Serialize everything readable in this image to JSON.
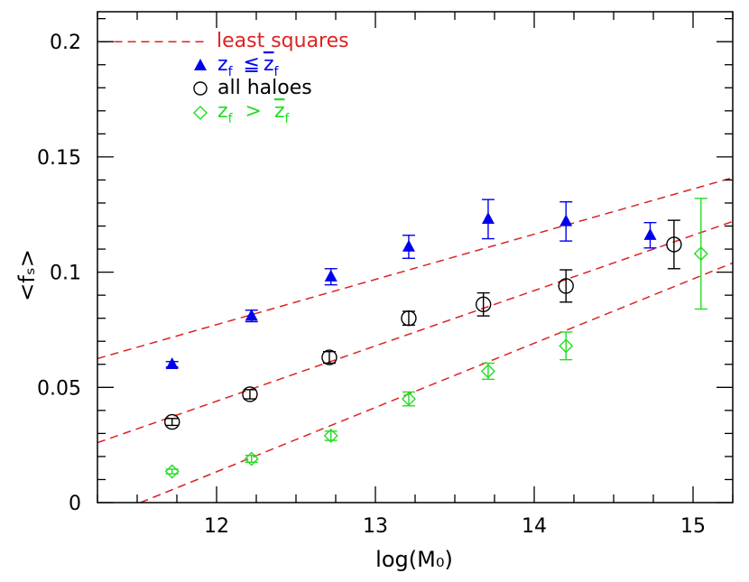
{
  "chart_data": {
    "type": "scatter",
    "xlabel": "log(M₀)",
    "ylabel": "<fₛ>",
    "xlim": [
      11.25,
      15.25
    ],
    "ylim": [
      0,
      0.213
    ],
    "x_ticks": [
      12,
      13,
      14,
      15
    ],
    "y_ticks": [
      0,
      0.05,
      0.1,
      0.15,
      0.2
    ],
    "x_tick_labels": [
      "12",
      "13",
      "14",
      "15"
    ],
    "y_tick_labels": [
      "0",
      "0.05",
      "0.1",
      "0.15",
      "0.2"
    ],
    "grid": false,
    "legend_position": "top-left",
    "series": [
      {
        "name": "z_f ≦ z̄_f",
        "legend_label_main": "z",
        "legend_label_sub": "f",
        "legend_label_op": "≦",
        "legend_label_bar": "z",
        "legend_label_bar_sub": "f",
        "marker": "filled-triangle",
        "color": "#0000ee",
        "points": [
          {
            "x": 11.72,
            "y": 0.06,
            "err": 0.0012
          },
          {
            "x": 12.22,
            "y": 0.081,
            "err": 0.0025
          },
          {
            "x": 12.72,
            "y": 0.098,
            "err": 0.0035
          },
          {
            "x": 13.21,
            "y": 0.111,
            "err": 0.005
          },
          {
            "x": 13.71,
            "y": 0.123,
            "err": 0.0085
          },
          {
            "x": 14.2,
            "y": 0.122,
            "err": 0.0085
          },
          {
            "x": 14.73,
            "y": 0.116,
            "err": 0.0055
          }
        ],
        "fit": {
          "x": [
            11.25,
            15.25
          ],
          "y": [
            0.0625,
            0.141
          ]
        }
      },
      {
        "name": "all haloes",
        "legend_label_main": "all haloes",
        "marker": "open-circle",
        "color": "#000000",
        "points": [
          {
            "x": 11.72,
            "y": 0.035,
            "err": 0.0015
          },
          {
            "x": 12.21,
            "y": 0.047,
            "err": 0.002
          },
          {
            "x": 12.71,
            "y": 0.063,
            "err": 0.0025
          },
          {
            "x": 13.21,
            "y": 0.08,
            "err": 0.003
          },
          {
            "x": 13.68,
            "y": 0.086,
            "err": 0.005
          },
          {
            "x": 14.2,
            "y": 0.094,
            "err": 0.007
          },
          {
            "x": 14.88,
            "y": 0.112,
            "err": 0.0105
          }
        ],
        "fit": {
          "x": [
            11.25,
            15.25
          ],
          "y": [
            0.026,
            0.122
          ]
        }
      },
      {
        "name": "z_f > z̄_f",
        "legend_label_main": "z",
        "legend_label_sub": "f",
        "legend_label_op": ">",
        "legend_label_bar": "z",
        "legend_label_bar_sub": "f",
        "marker": "open-diamond",
        "color": "#22dd22",
        "points": [
          {
            "x": 11.72,
            "y": 0.0135,
            "err": 0.001
          },
          {
            "x": 12.22,
            "y": 0.019,
            "err": 0.0015
          },
          {
            "x": 12.72,
            "y": 0.029,
            "err": 0.002
          },
          {
            "x": 13.21,
            "y": 0.045,
            "err": 0.003
          },
          {
            "x": 13.71,
            "y": 0.057,
            "err": 0.0035
          },
          {
            "x": 14.2,
            "y": 0.068,
            "err": 0.006
          },
          {
            "x": 15.05,
            "y": 0.108,
            "err": 0.024
          }
        ],
        "fit": {
          "x": [
            11.52,
            15.25
          ],
          "y": [
            0.0,
            0.104
          ]
        }
      }
    ],
    "least_squares": {
      "label": "least squares",
      "color": "#dd2222",
      "legend_line_x": [
        11.27,
        11.95
      ],
      "legend_line_y": 0.2
    }
  }
}
